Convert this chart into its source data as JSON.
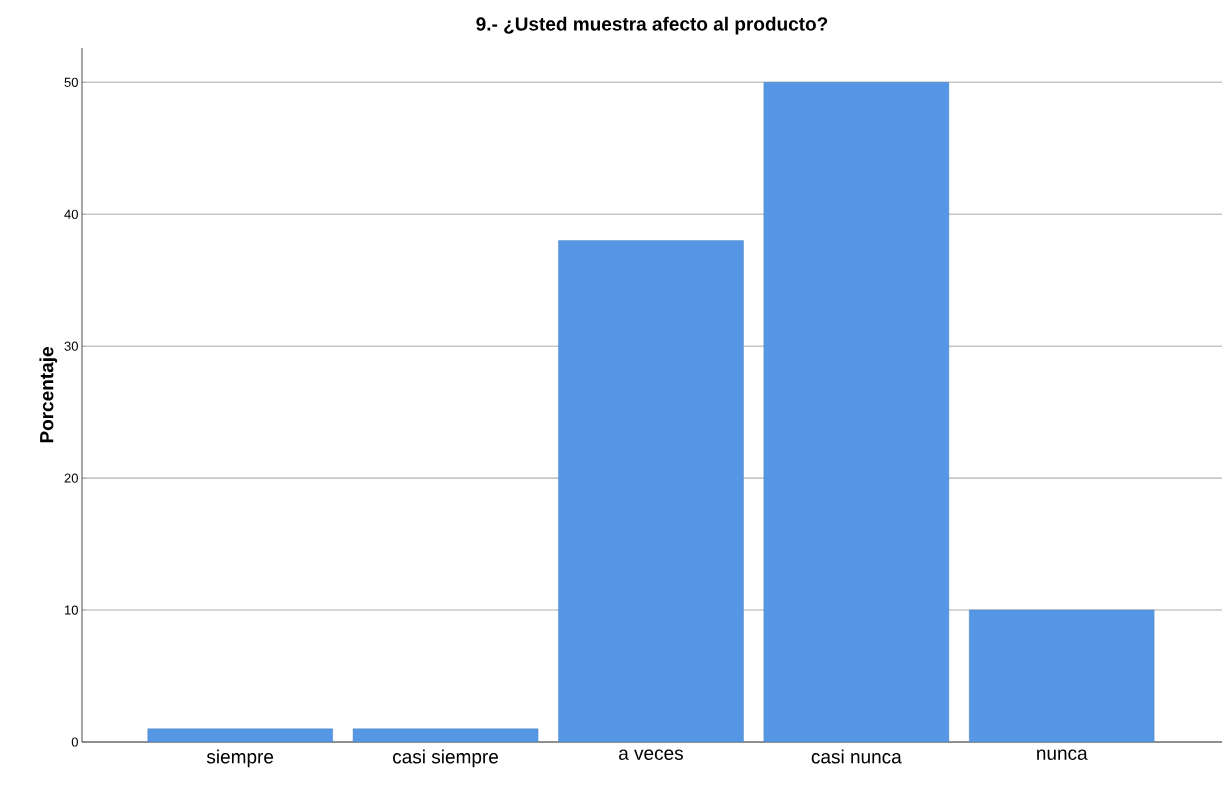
{
  "chart_data": {
    "type": "bar",
    "title": "9.- ¿Usted muestra afecto al producto?",
    "ylabel": "Porcentaje",
    "categories": [
      "siempre",
      "casi siempre",
      "a veces",
      "casi nunca",
      "nunca"
    ],
    "values": [
      1,
      1,
      38,
      50,
      10
    ],
    "color": "#5597e4",
    "ylim": [
      0,
      52.6
    ],
    "yticks": [
      0,
      10,
      20,
      30,
      40,
      50
    ],
    "grid": "y"
  }
}
